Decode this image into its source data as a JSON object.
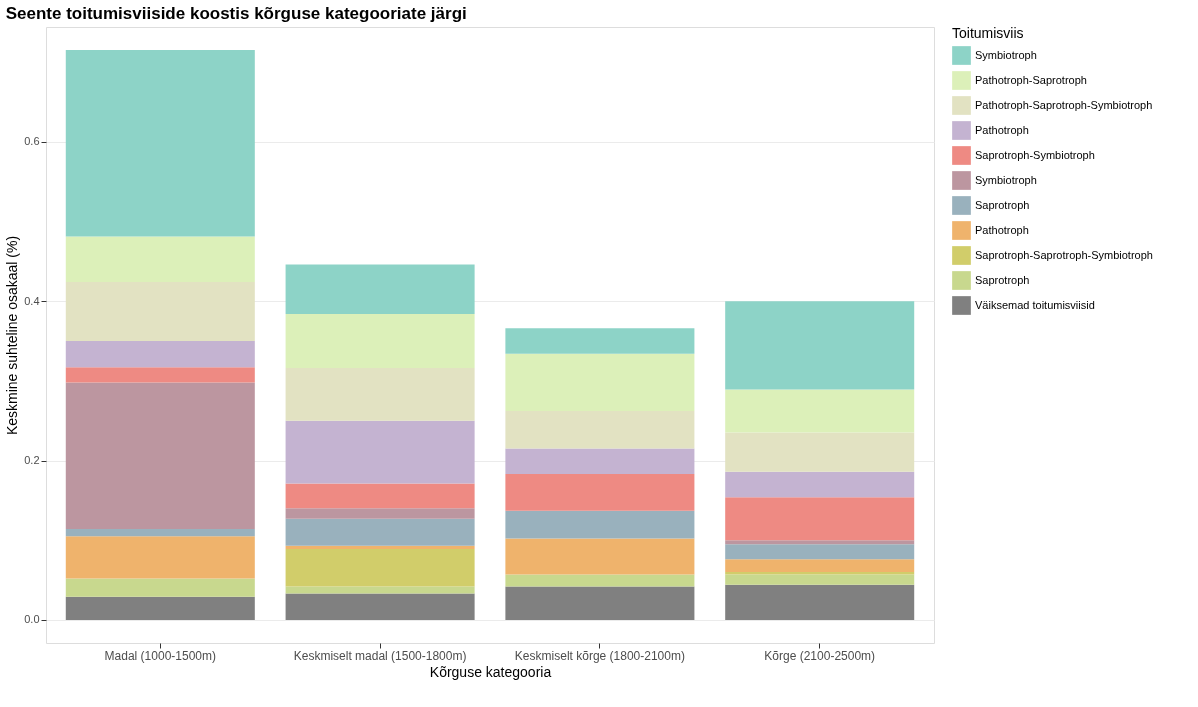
{
  "chart_data": {
    "type": "bar",
    "stacked": true,
    "title": "Seente toitumisviiside koostis kõrguse kategooriate järgi",
    "xlabel": "Kõrguse kategooria",
    "ylabel": "Keskmine suhteline osakaal (%)",
    "legend_title": "Toitumisviis",
    "legend": "right",
    "grid": "y",
    "categories": [
      "Madal (1000-1500m)",
      "Keskmiselt madal (1500-1800m)",
      "Keskmiselt kõrge (1800-2100m)",
      "Kõrge (2100-2500m)"
    ],
    "ylim": [
      -0.029,
      0.744
    ],
    "yticks": [
      {
        "value": 0,
        "label": "0.0"
      },
      {
        "value": 0.2,
        "label": "0.2"
      },
      {
        "value": 0.4,
        "label": "0.4"
      },
      {
        "value": 0.6,
        "label": "0.6"
      }
    ],
    "series": [
      {
        "name": "Väiksemad toitumisviisid",
        "color": "#808080",
        "values": [
          0.029,
          0.033,
          0.042,
          0.044
        ]
      },
      {
        "name": " Saprotroph",
        "color": "#c8d88e",
        "values": [
          0.023,
          0.009,
          0.015,
          0.013
        ]
      },
      {
        "name": " Saprotroph-Saprotroph-Symbiotroph",
        "color": "#d1cd6a",
        "values": [
          0,
          0.047,
          0,
          0.003
        ]
      },
      {
        "name": " Pathotroph",
        "color": "#efb36c",
        "values": [
          0.053,
          0.004,
          0.045,
          0.016
        ]
      },
      {
        "name": "Saprotroph",
        "color": "#99b1bd",
        "values": [
          0.009,
          0.034,
          0.035,
          0.019
        ]
      },
      {
        "name": " Symbiotroph",
        "color": "#bc96a0",
        "values": [
          0.184,
          0.013,
          0,
          0.005
        ]
      },
      {
        "name": "Saprotroph-Symbiotroph",
        "color": "#ee8a83",
        "values": [
          0.019,
          0.031,
          0.046,
          0.054
        ]
      },
      {
        "name": "Pathotroph",
        "color": "#c4b3d1",
        "values": [
          0.033,
          0.079,
          0.032,
          0.032
        ]
      },
      {
        "name": "Pathotroph-Saprotroph-Symbiotroph",
        "color": "#e2e2c2",
        "values": [
          0.074,
          0.066,
          0.047,
          0.049
        ]
      },
      {
        "name": "Pathotroph-Saprotroph",
        "color": "#dcf0b9",
        "values": [
          0.057,
          0.068,
          0.072,
          0.054
        ]
      },
      {
        "name": "Symbiotroph",
        "color": "#8dd3c7",
        "values": [
          0.234,
          0.062,
          0.032,
          0.111
        ]
      }
    ]
  }
}
